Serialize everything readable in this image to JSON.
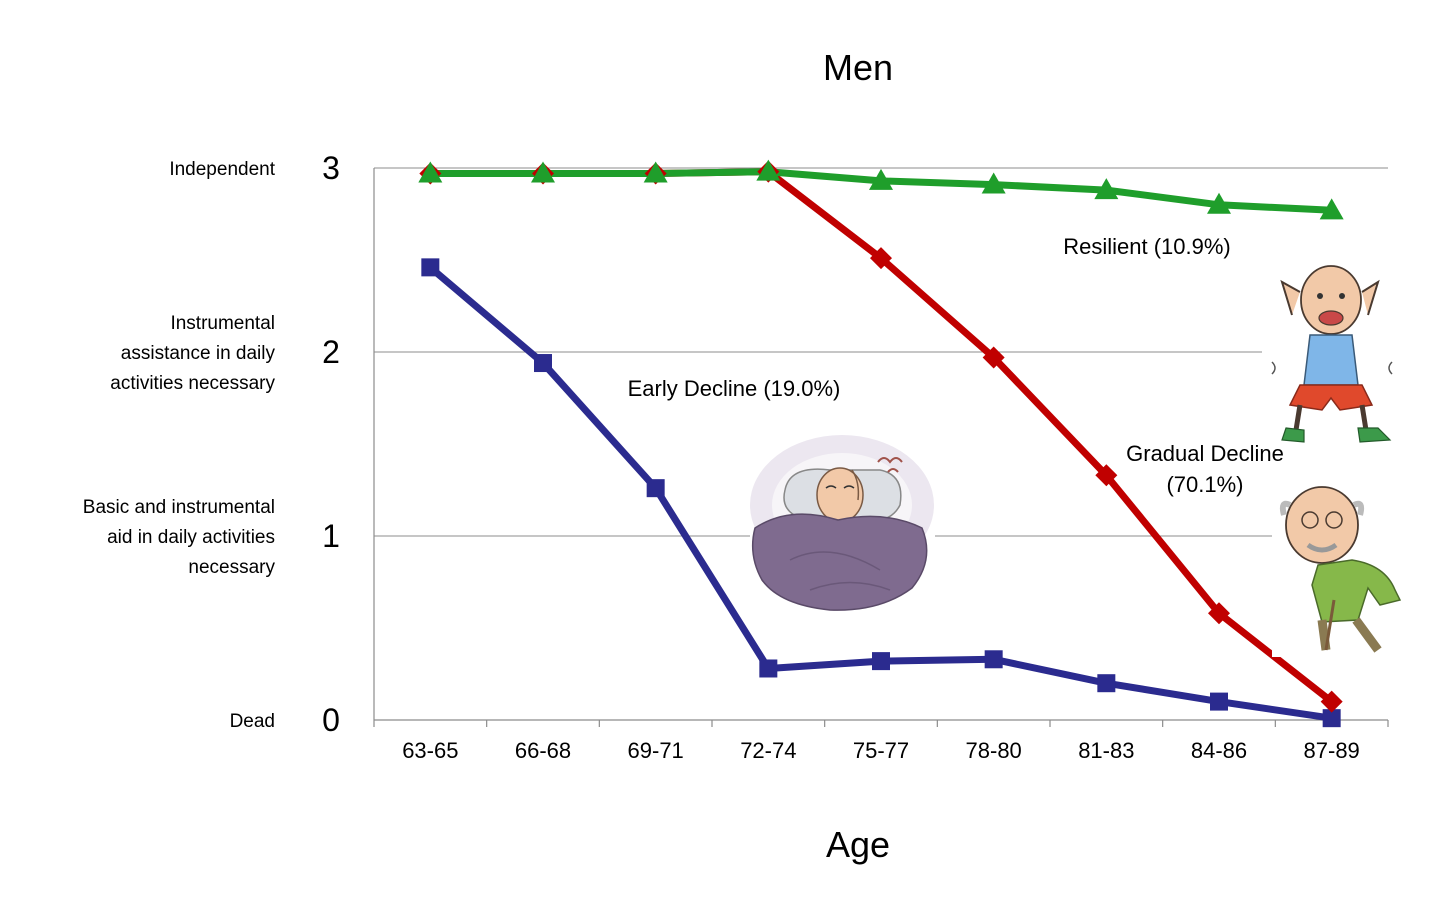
{
  "chart_data": {
    "type": "line",
    "title": "Men",
    "xlabel": "Age",
    "ylabel": "",
    "ylim": [
      0,
      3
    ],
    "yticks": [
      "0",
      "1",
      "2",
      "3"
    ],
    "category_labels": [
      {
        "value": 3,
        "lines": [
          "Independent"
        ]
      },
      {
        "value": 2,
        "lines": [
          "Instrumental",
          "assistance in daily",
          "activities necessary"
        ]
      },
      {
        "value": 1,
        "lines": [
          "Basic and instrumental",
          "aid in daily activities",
          "necessary"
        ]
      },
      {
        "value": 0,
        "lines": [
          "Dead"
        ]
      }
    ],
    "categories": [
      "63-65",
      "66-68",
      "69-71",
      "72-74",
      "75-77",
      "78-80",
      "81-83",
      "84-86",
      "87-89"
    ],
    "grid": true,
    "series": [
      {
        "name": "Early Decline (19.0%)",
        "color": "#2b2b8f",
        "marker": "square",
        "values": [
          2.46,
          1.94,
          1.26,
          0.28,
          0.32,
          0.33,
          0.2,
          0.1,
          0.01
        ]
      },
      {
        "name": "Gradual Decline (70.1%)",
        "color": "#c00000",
        "marker": "diamond",
        "values": [
          2.97,
          2.97,
          2.97,
          2.98,
          2.51,
          1.97,
          1.33,
          0.58,
          0.1
        ]
      },
      {
        "name": "Resilient (10.9%)",
        "color": "#1f9e2b",
        "marker": "triangle",
        "values": [
          2.97,
          2.97,
          2.97,
          2.98,
          2.93,
          2.91,
          2.88,
          2.8,
          2.77
        ]
      }
    ],
    "annotations": [
      {
        "series": 0,
        "lines": [
          "Early Decline (19.0%)"
        ]
      },
      {
        "series": 1,
        "lines": [
          "Gradual Decline",
          "(70.1%)"
        ]
      },
      {
        "series": 2,
        "lines": [
          "Resilient (10.9%)"
        ]
      }
    ]
  }
}
